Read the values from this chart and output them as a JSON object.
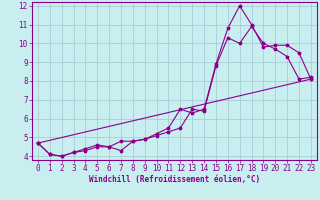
{
  "bg_color": "#c8eef0",
  "line_color": "#8b008b",
  "grid_color": "#a0c8d0",
  "xlabel": "Windchill (Refroidissement éolien,°C)",
  "tick_color": "#8b008b",
  "spine_color": "#8b008b",
  "xlim": [
    -0.5,
    23.5
  ],
  "ylim": [
    3.8,
    12.2
  ],
  "yticks": [
    4,
    5,
    6,
    7,
    8,
    9,
    10,
    11,
    12
  ],
  "xticks": [
    0,
    1,
    2,
    3,
    4,
    5,
    6,
    7,
    8,
    9,
    10,
    11,
    12,
    13,
    14,
    15,
    16,
    17,
    18,
    19,
    20,
    21,
    22,
    23
  ],
  "line1_x": [
    0,
    1,
    2,
    3,
    4,
    5,
    6,
    7,
    8,
    9,
    10,
    11,
    12,
    13,
    14,
    15,
    16,
    17,
    18,
    19,
    20,
    21,
    22,
    23
  ],
  "line1_y": [
    4.7,
    4.1,
    4.0,
    4.2,
    4.3,
    4.5,
    4.5,
    4.8,
    4.8,
    4.9,
    5.1,
    5.3,
    5.5,
    6.5,
    6.4,
    8.8,
    10.3,
    10.0,
    10.9,
    10.0,
    9.7,
    9.3,
    8.1,
    8.2
  ],
  "line2_x": [
    0,
    1,
    2,
    3,
    4,
    5,
    6,
    7,
    8,
    9,
    10,
    11,
    12,
    13,
    14,
    15,
    16,
    17,
    18,
    19,
    20,
    21,
    22,
    23
  ],
  "line2_y": [
    4.7,
    4.1,
    4.0,
    4.2,
    4.4,
    4.6,
    4.5,
    4.3,
    4.8,
    4.9,
    5.2,
    5.5,
    6.5,
    6.3,
    6.5,
    8.9,
    10.8,
    12.0,
    11.0,
    9.8,
    9.9,
    9.9,
    9.5,
    8.1
  ],
  "line3_x": [
    0,
    23
  ],
  "line3_y": [
    4.7,
    8.1
  ],
  "tick_fontsize": 5.5,
  "xlabel_fontsize": 5.5
}
